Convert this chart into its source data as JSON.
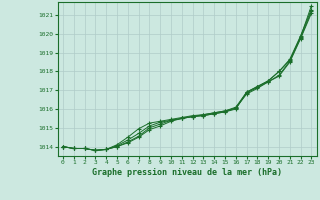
{
  "xlabel": "Graphe pression niveau de la mer (hPa)",
  "bg_color": "#cce8e0",
  "grid_color": "#b0ccc8",
  "line_color": "#1a6e2a",
  "xlim": [
    -0.5,
    23.5
  ],
  "ylim": [
    1013.5,
    1021.7
  ],
  "yticks": [
    1014,
    1015,
    1016,
    1017,
    1018,
    1019,
    1020,
    1021
  ],
  "xticks": [
    0,
    1,
    2,
    3,
    4,
    5,
    6,
    7,
    8,
    9,
    10,
    11,
    12,
    13,
    14,
    15,
    16,
    17,
    18,
    19,
    20,
    21,
    22,
    23
  ],
  "series": [
    [
      1014.0,
      1013.9,
      1013.9,
      1013.8,
      1013.85,
      1014.0,
      1014.2,
      1014.5,
      1014.9,
      1015.1,
      1015.35,
      1015.5,
      1015.6,
      1015.65,
      1015.75,
      1015.85,
      1016.0,
      1016.9,
      1017.2,
      1017.5,
      1018.0,
      1018.6,
      1019.85,
      1021.5
    ],
    [
      1014.0,
      1013.9,
      1013.9,
      1013.8,
      1013.85,
      1014.0,
      1014.25,
      1014.55,
      1015.0,
      1015.2,
      1015.4,
      1015.5,
      1015.6,
      1015.7,
      1015.8,
      1015.9,
      1016.1,
      1016.9,
      1017.2,
      1017.5,
      1018.0,
      1018.65,
      1019.9,
      1021.3
    ],
    [
      1014.0,
      1013.9,
      1013.9,
      1013.8,
      1013.85,
      1014.05,
      1014.35,
      1014.7,
      1015.1,
      1015.3,
      1015.4,
      1015.5,
      1015.6,
      1015.65,
      1015.75,
      1015.85,
      1016.05,
      1016.85,
      1017.15,
      1017.45,
      1017.8,
      1018.55,
      1019.8,
      1021.2
    ],
    [
      1014.0,
      1013.9,
      1013.9,
      1013.8,
      1013.85,
      1014.1,
      1014.5,
      1014.95,
      1015.25,
      1015.35,
      1015.45,
      1015.55,
      1015.65,
      1015.7,
      1015.8,
      1015.9,
      1016.05,
      1016.8,
      1017.1,
      1017.45,
      1017.75,
      1018.5,
      1019.75,
      1021.1
    ]
  ]
}
